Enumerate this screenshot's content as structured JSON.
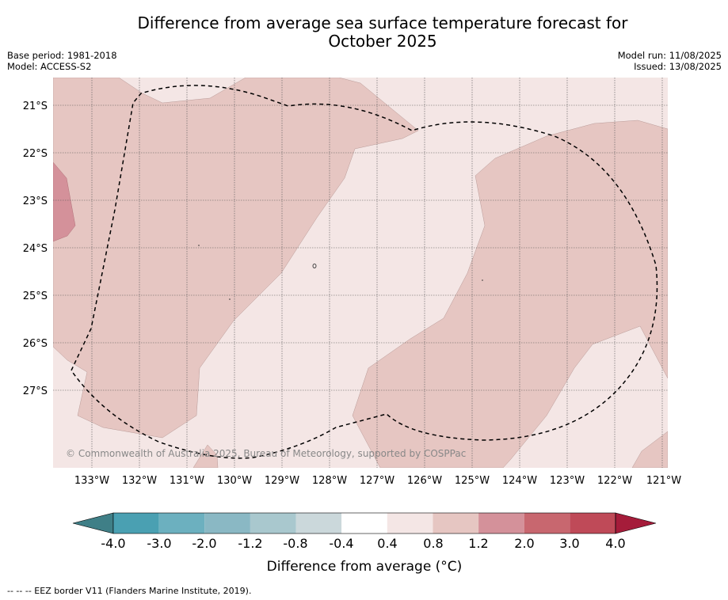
{
  "title_line1": "Difference from average sea surface temperature forecast for",
  "title_line2": "October 2025",
  "base_period": "Base period: 1981-2018",
  "model": "Model: ACCESS-S2",
  "model_run": "Model run: 11/08/2025",
  "issued": "Issued: 13/08/2025",
  "copyright": "© Commonwealth of Australia 2025, Bureau of Meteorology, supported by COSPPac",
  "lat_labels": [
    "21°S",
    "22°S",
    "23°S",
    "24°S",
    "25°S",
    "26°S",
    "27°S"
  ],
  "lon_labels": [
    "133°W",
    "132°W",
    "131°W",
    "130°W",
    "129°W",
    "128°W",
    "127°W",
    "126°W",
    "125°W",
    "124°W",
    "123°W",
    "122°W",
    "121°W"
  ],
  "colorbar": {
    "title": "Difference from average (°C)",
    "tick_labels": [
      "-4.0",
      "-3.0",
      "-2.0",
      "-1.2",
      "-0.8",
      "-0.4",
      "0.4",
      "0.8",
      "1.2",
      "2.0",
      "3.0",
      "4.0"
    ],
    "colors": [
      "#3f7f87",
      "#4aa0b2",
      "#6cb0bf",
      "#8ab8c4",
      "#a9c8ce",
      "#cbd8db",
      "#ffffff",
      "#f4e6e5",
      "#e6c6c2",
      "#d4919a",
      "#c8676f",
      "#bf4a58",
      "#a51c3a"
    ]
  },
  "footnote": "--  --  -- EEZ border V11 (Flanders Marine Institute, 2019)."
}
